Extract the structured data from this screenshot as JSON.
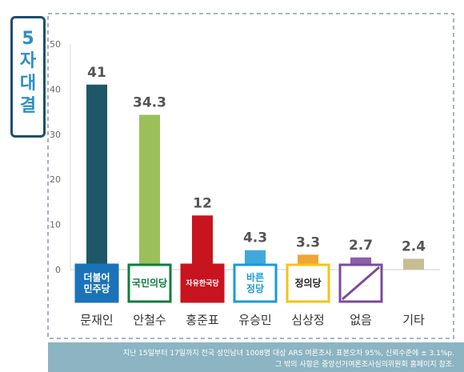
{
  "title": "5자대결",
  "footnote": [
    "지난 15일부터 17일까지 전국 성인남녀 1008명 대상 ARS 여론조사. 표본오차 95%, 신뢰수준에 ± 3.1%p.",
    "그 밖의 사항은 중앙선거여론조사심의위원회 홈페이지 참조."
  ],
  "chart_data": {
    "type": "bar",
    "categories": [
      "문재인",
      "안철수",
      "홍준표",
      "유승민",
      "심상정",
      "없음",
      "기타"
    ],
    "values": [
      41,
      34.3,
      12,
      4.3,
      3.3,
      2.7,
      2.4
    ],
    "value_labels": [
      "41",
      "34.3",
      "12",
      "4.3",
      "3.3",
      "2.7",
      "2.4"
    ],
    "ylim": [
      0,
      50
    ],
    "yticks": [
      0,
      10,
      20,
      30,
      40,
      50
    ],
    "grid": false,
    "legend": "none",
    "colors": [
      "#1e5768",
      "#9bbf5a",
      "#c8141e",
      "#3fa9dc",
      "#f0a535",
      "#8c5fa8",
      "#c8bc94"
    ],
    "party_logos": [
      {
        "lines": [
          "더불어",
          "민주당"
        ],
        "bg": "#1a73b8",
        "fg": "#ffffff",
        "border": "#1a73b8"
      },
      {
        "lines": [
          "국민의당"
        ],
        "bg": "#ffffff",
        "fg": "#0d7d3c",
        "border": "#0d7d3c"
      },
      {
        "lines": [
          "자유한국당"
        ],
        "bg": "#c8141e",
        "fg": "#ffffff",
        "border": "#c8141e"
      },
      {
        "lines": [
          "바른",
          "정당"
        ],
        "bg": "#ffffff",
        "fg": "#1a9ad6",
        "border": "#1a9ad6"
      },
      {
        "lines": [
          "정의당"
        ],
        "bg": "#ffffff",
        "fg": "#222222",
        "border": "#f3c514"
      },
      {
        "lines": [
          ""
        ],
        "bg": "#ffffff",
        "fg": "#7a4a9c",
        "border": "#7a4a9c"
      },
      {
        "lines": [
          ""
        ],
        "bg": "#ffffff",
        "fg": "#ffffff",
        "border": "#ffffff"
      }
    ]
  }
}
